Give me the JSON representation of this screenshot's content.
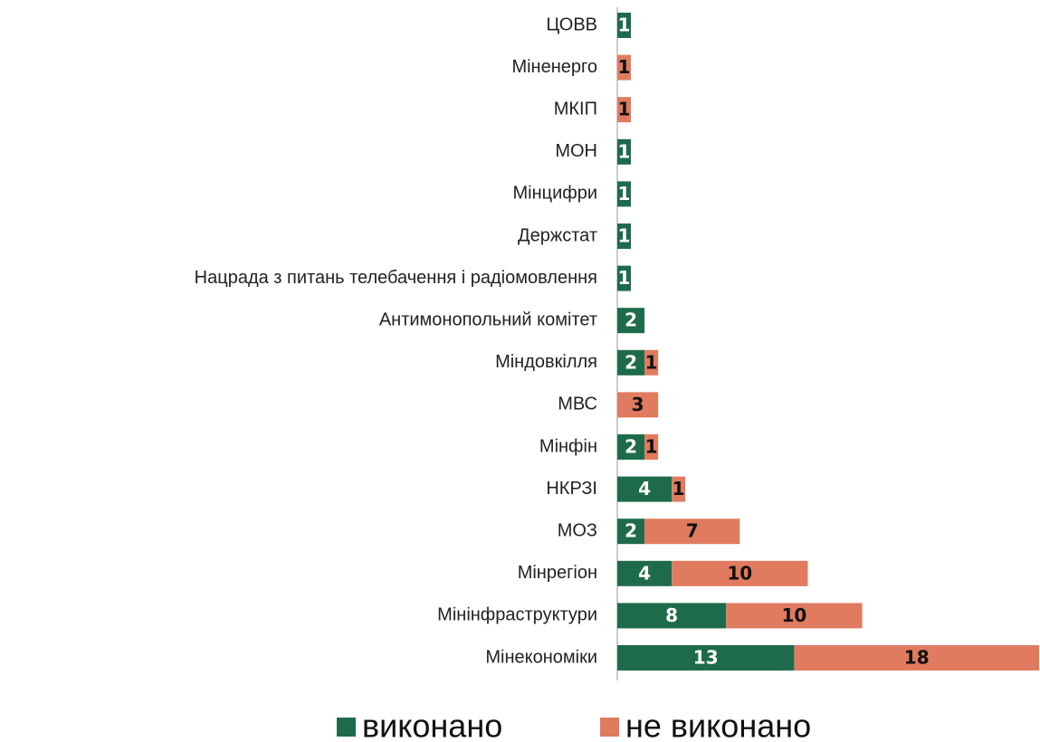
{
  "chart_data": {
    "type": "bar",
    "orientation": "horizontal",
    "stacked": true,
    "categories": [
      "ЦОВВ",
      "Міненерго",
      "МКІП",
      "МОН",
      "Мінцифри",
      "Держстат",
      "Нацрада з питань телебачення і радіомовлення",
      "Антимонопольний  комітет",
      "Міндовкілля",
      "МВС",
      "Мінфін",
      "НКРЗІ",
      "МОЗ",
      "Мінрегіон",
      "Мінінфраструктури",
      "Мінекономіки"
    ],
    "series": [
      {
        "name": "виконано",
        "color": "#1e6b4c",
        "label_color": "#ffffff",
        "values": [
          1,
          null,
          null,
          1,
          1,
          1,
          1,
          2,
          2,
          null,
          2,
          4,
          2,
          4,
          8,
          13
        ]
      },
      {
        "name": "не виконано",
        "color": "#e07b5f",
        "label_color": "#111111",
        "values": [
          null,
          1,
          1,
          null,
          null,
          null,
          null,
          null,
          1,
          3,
          1,
          1,
          7,
          10,
          10,
          18
        ]
      }
    ],
    "legend": "bottom"
  }
}
